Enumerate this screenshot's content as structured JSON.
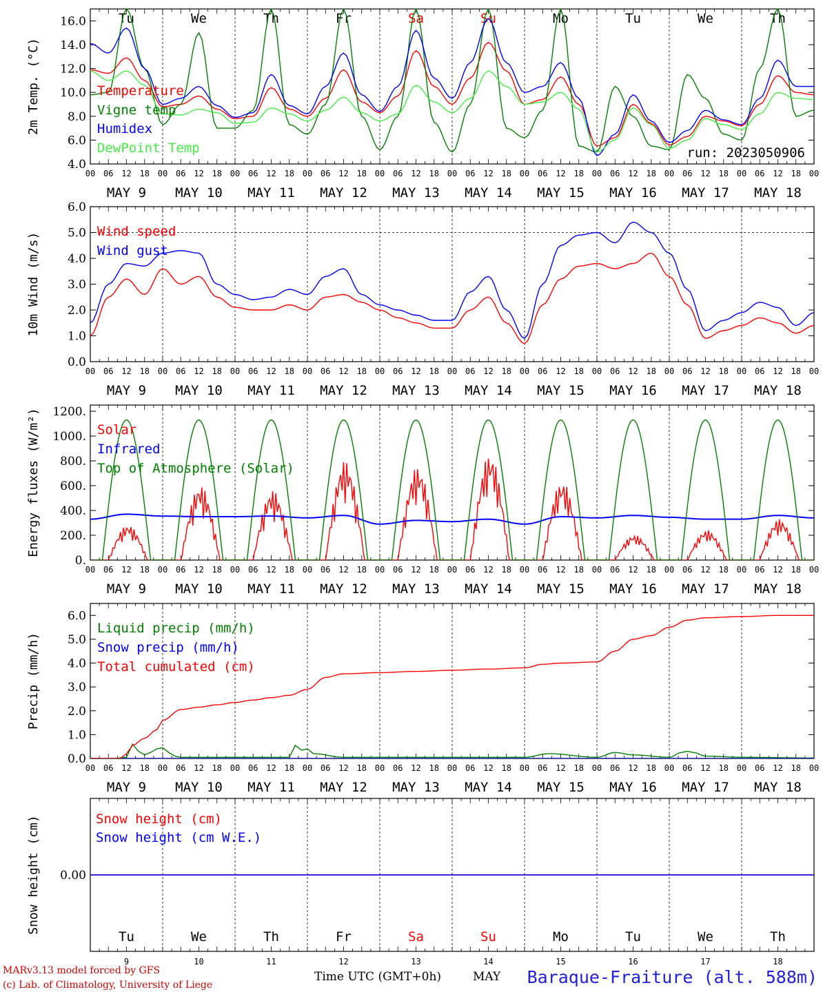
{
  "chart_data": [
    {
      "type": "line",
      "ylabel": "2m Temp. (°C)",
      "ylim": [
        4.0,
        17.0
      ],
      "yticks": [
        4.0,
        6.0,
        8.0,
        10.0,
        12.0,
        14.0,
        16.0
      ],
      "ytick_labels": [
        "4.0",
        "6.0",
        "8.0",
        "10.0",
        "12.0",
        "14.0",
        "16.0"
      ],
      "xlim": [
        0,
        240
      ],
      "annotation": "run: 2023050906",
      "series": [
        {
          "name": "Temperature",
          "color": "#ff0000",
          "x": [
            0,
            6,
            12,
            18,
            24,
            30,
            36,
            42,
            48,
            54,
            60,
            66,
            72,
            78,
            84,
            90,
            96,
            102,
            108,
            114,
            120,
            126,
            132,
            138,
            144,
            150,
            156,
            162,
            168,
            174,
            180,
            186,
            192,
            198,
            204,
            210,
            216,
            222,
            228,
            234,
            240
          ],
          "values": [
            11.9,
            11.6,
            12.9,
            11.0,
            8.8,
            9.0,
            9.7,
            8.6,
            7.8,
            8.0,
            10.4,
            8.6,
            8.0,
            9.5,
            11.9,
            9.2,
            8.3,
            9.7,
            13.5,
            10.5,
            9.0,
            11.2,
            14.2,
            11.8,
            9.0,
            9.4,
            11.3,
            9.0,
            5.5,
            6.2,
            9.0,
            7.4,
            5.6,
            6.3,
            8.0,
            7.6,
            7.2,
            9.0,
            11.4,
            10.0,
            9.8
          ]
        },
        {
          "name": "Vigne temp",
          "color": "#008000",
          "x": [
            0,
            6,
            12,
            18,
            24,
            30,
            36,
            42,
            48,
            54,
            60,
            66,
            72,
            78,
            84,
            90,
            96,
            102,
            108,
            114,
            120,
            126,
            132,
            138,
            144,
            150,
            156,
            162,
            168,
            174,
            180,
            186,
            192,
            198,
            204,
            210,
            216,
            222,
            228,
            234,
            240
          ],
          "values": [
            9.8,
            10.0,
            17.0,
            12.0,
            7.3,
            9.0,
            15.0,
            7.0,
            7.0,
            8.5,
            17.0,
            7.3,
            6.5,
            9.0,
            17.0,
            8.0,
            5.2,
            8.0,
            17.0,
            7.5,
            5.0,
            9.0,
            17.0,
            7.0,
            6.2,
            8.5,
            17.0,
            5.5,
            5.0,
            10.5,
            8.0,
            5.5,
            5.2,
            11.5,
            9.5,
            6.5,
            6.0,
            12.0,
            17.0,
            8.0,
            8.5
          ]
        },
        {
          "name": "Humidex",
          "color": "#0000ff",
          "x": [
            0,
            6,
            12,
            18,
            24,
            30,
            36,
            42,
            48,
            54,
            60,
            66,
            72,
            78,
            84,
            90,
            96,
            102,
            108,
            114,
            120,
            126,
            132,
            138,
            144,
            150,
            156,
            162,
            168,
            174,
            180,
            186,
            192,
            198,
            204,
            210,
            216,
            222,
            228,
            234,
            240
          ],
          "values": [
            14.1,
            13.3,
            15.4,
            12.0,
            9.0,
            9.5,
            10.5,
            8.9,
            7.9,
            8.3,
            11.5,
            8.9,
            8.2,
            10.5,
            13.3,
            9.8,
            8.4,
            10.5,
            15.2,
            11.2,
            9.5,
            12.5,
            16.2,
            12.5,
            10.0,
            10.5,
            12.5,
            9.5,
            4.7,
            6.5,
            9.8,
            7.6,
            5.8,
            6.8,
            8.5,
            7.7,
            7.3,
            9.5,
            12.7,
            10.5,
            10.5
          ]
        },
        {
          "name": "DewPoint Temp",
          "color": "#44ee44",
          "x": [
            0,
            6,
            12,
            18,
            24,
            30,
            36,
            42,
            48,
            54,
            60,
            66,
            72,
            78,
            84,
            90,
            96,
            102,
            108,
            114,
            120,
            126,
            132,
            138,
            144,
            150,
            156,
            162,
            168,
            174,
            180,
            186,
            192,
            198,
            204,
            210,
            216,
            222,
            228,
            234,
            240
          ],
          "values": [
            11.8,
            11.0,
            11.8,
            10.6,
            8.2,
            8.1,
            8.6,
            8.3,
            7.4,
            7.5,
            8.7,
            8.2,
            7.6,
            8.5,
            9.6,
            8.3,
            7.6,
            8.2,
            10.6,
            9.2,
            8.3,
            9.5,
            11.8,
            10.5,
            9.0,
            9.2,
            10.0,
            8.6,
            5.0,
            6.0,
            8.7,
            7.3,
            5.3,
            6.0,
            7.8,
            7.3,
            6.9,
            8.2,
            10.0,
            9.5,
            9.4
          ]
        }
      ]
    },
    {
      "type": "line",
      "ylabel": "10m Wind (m/s)",
      "ylim": [
        0.0,
        6.0
      ],
      "yticks": [
        0,
        1,
        2,
        3,
        4,
        5,
        6
      ],
      "ytick_labels": [
        "0.0",
        "1.0",
        "2.0",
        "3.0",
        "4.0",
        "5.0",
        "6.0"
      ],
      "xlim": [
        0,
        240
      ],
      "reference_line": 5.0,
      "series": [
        {
          "name": "Wind speed",
          "color": "#ff0000",
          "x": [
            0,
            6,
            12,
            18,
            24,
            30,
            36,
            42,
            48,
            54,
            60,
            66,
            72,
            78,
            84,
            90,
            96,
            102,
            108,
            114,
            120,
            126,
            132,
            138,
            144,
            150,
            156,
            162,
            168,
            174,
            180,
            186,
            192,
            198,
            204,
            210,
            216,
            222,
            228,
            234,
            240
          ],
          "values": [
            1.0,
            2.5,
            3.2,
            2.6,
            3.6,
            3.0,
            3.3,
            2.5,
            2.1,
            2.0,
            2.0,
            2.2,
            2.0,
            2.5,
            2.6,
            2.3,
            2.0,
            1.7,
            1.5,
            1.3,
            1.3,
            2.0,
            2.5,
            1.5,
            0.7,
            2.2,
            3.2,
            3.7,
            3.8,
            3.6,
            3.8,
            4.2,
            3.3,
            2.2,
            0.9,
            1.2,
            1.4,
            1.7,
            1.5,
            1.1,
            1.4
          ]
        },
        {
          "name": "Wind gust",
          "color": "#0000ff",
          "x": [
            0,
            6,
            12,
            18,
            24,
            30,
            36,
            42,
            48,
            54,
            60,
            66,
            72,
            78,
            84,
            90,
            96,
            102,
            108,
            114,
            120,
            126,
            132,
            138,
            144,
            150,
            156,
            162,
            168,
            174,
            180,
            186,
            192,
            198,
            204,
            210,
            216,
            222,
            228,
            234,
            240
          ],
          "values": [
            1.5,
            3.0,
            3.8,
            3.7,
            4.2,
            4.3,
            4.2,
            3.0,
            2.6,
            2.4,
            2.5,
            2.8,
            2.6,
            3.3,
            3.6,
            2.6,
            2.2,
            2.0,
            1.8,
            1.6,
            1.6,
            2.7,
            3.3,
            2.0,
            0.9,
            3.0,
            4.5,
            4.9,
            5.0,
            4.6,
            5.4,
            5.0,
            4.2,
            2.8,
            1.2,
            1.6,
            1.9,
            2.3,
            2.1,
            1.4,
            1.9
          ]
        }
      ]
    },
    {
      "type": "line",
      "ylabel": "Energy fluxes (W/m²)",
      "ylim": [
        0,
        1250
      ],
      "yticks": [
        0,
        200,
        400,
        600,
        800,
        1000,
        1200
      ],
      "ytick_labels": [
        "0.",
        "200.",
        "400.",
        "600.",
        "800.",
        "1000.",
        "1200."
      ],
      "xlim": [
        0,
        240
      ],
      "series": [
        {
          "name": "Solar",
          "color": "#ff0000",
          "daily_peaks": [
            280,
            600,
            560,
            800,
            750,
            850,
            630,
            200,
            240,
            330
          ]
        },
        {
          "name": "Infrared",
          "color": "#0000ff",
          "x": [
            0,
            12,
            24,
            36,
            48,
            60,
            72,
            84,
            96,
            108,
            120,
            132,
            144,
            156,
            168,
            180,
            192,
            204,
            216,
            228,
            240
          ],
          "values": [
            330,
            370,
            355,
            350,
            350,
            355,
            340,
            360,
            290,
            320,
            310,
            330,
            290,
            350,
            340,
            360,
            345,
            330,
            330,
            360,
            340
          ]
        },
        {
          "name": "Top of Atmosphere (Solar)",
          "color": "#008000",
          "daily_peak": 1130,
          "sunrise_hour": 4,
          "sunset_hour": 20
        }
      ]
    },
    {
      "type": "line",
      "ylabel": "Precip (mm/h)",
      "ylim": [
        0.0,
        6.5
      ],
      "yticks": [
        0,
        1,
        2,
        3,
        4,
        5,
        6
      ],
      "ytick_labels": [
        "0.0",
        "1.0",
        "2.0",
        "3.0",
        "4.0",
        "5.0",
        "6.0"
      ],
      "xlim": [
        0,
        240
      ],
      "series": [
        {
          "name": "Liquid precip (mm/h)",
          "color": "#008000",
          "x": [
            0,
            8,
            12,
            14,
            16,
            18,
            20,
            22,
            24,
            26,
            28,
            30,
            36,
            48,
            66,
            68,
            70,
            72,
            74,
            84,
            108,
            144,
            152,
            168,
            174,
            180,
            192,
            196,
            198,
            200,
            204,
            216,
            240
          ],
          "values": [
            0,
            0,
            0.05,
            0.6,
            0.3,
            0.15,
            0.25,
            0.4,
            0.45,
            0.25,
            0.1,
            0.05,
            0.05,
            0.05,
            0.05,
            0.55,
            0.35,
            0.4,
            0.2,
            0.05,
            0.05,
            0.05,
            0.2,
            0.05,
            0.25,
            0.15,
            0.05,
            0.25,
            0.3,
            0.25,
            0.1,
            0.05,
            0.02
          ]
        },
        {
          "name": "Snow precip (mm/h)",
          "color": "#0000ff",
          "x": [
            0,
            240
          ],
          "values": [
            0,
            0
          ]
        },
        {
          "name": "Total cumulated (cm)",
          "color": "#ff0000",
          "x": [
            0,
            10,
            12,
            14,
            18,
            22,
            24,
            30,
            36,
            42,
            48,
            54,
            60,
            66,
            72,
            78,
            84,
            96,
            108,
            120,
            132,
            144,
            150,
            156,
            168,
            174,
            180,
            186,
            192,
            198,
            204,
            216,
            228,
            240
          ],
          "values": [
            0,
            0,
            0.2,
            0.55,
            0.85,
            1.2,
            1.6,
            2.05,
            2.15,
            2.25,
            2.35,
            2.45,
            2.55,
            2.65,
            2.9,
            3.4,
            3.55,
            3.6,
            3.65,
            3.7,
            3.75,
            3.8,
            3.95,
            4.0,
            4.05,
            4.5,
            5.0,
            5.15,
            5.5,
            5.8,
            5.9,
            5.95,
            6.0,
            6.0
          ]
        }
      ]
    },
    {
      "type": "line",
      "ylabel": "Snow height (cm)",
      "ylim": [
        -1,
        1
      ],
      "yticks": [
        0
      ],
      "ytick_labels": [
        "0.00"
      ],
      "xlim": [
        0,
        240
      ],
      "series": [
        {
          "name": "Snow height (cm)",
          "color": "#ff0000",
          "x": [
            0,
            240
          ],
          "values": [
            0,
            0
          ]
        },
        {
          "name": "Snow height (cm W.E.)",
          "color": "#0000ff",
          "x": [
            0,
            240
          ],
          "values": [
            0,
            0
          ]
        }
      ]
    }
  ],
  "x_axis": {
    "hour_labels": [
      "00",
      "06",
      "12",
      "18"
    ],
    "final_hour_label": "00",
    "dates": [
      "MAY  9",
      "MAY 10",
      "MAY 11",
      "MAY 12",
      "MAY 13",
      "MAY 14",
      "MAY 15",
      "MAY 16",
      "MAY 17",
      "MAY 18"
    ],
    "days": [
      {
        "label": "Tu",
        "color": "#000000"
      },
      {
        "label": "We",
        "color": "#000000"
      },
      {
        "label": "Th",
        "color": "#000000"
      },
      {
        "label": "Fr",
        "color": "#000000"
      },
      {
        "label": "Sa",
        "color": "#ff0000"
      },
      {
        "label": "Su",
        "color": "#ff0000"
      },
      {
        "label": "Mo",
        "color": "#000000"
      },
      {
        "label": "Tu",
        "color": "#000000"
      },
      {
        "label": "We",
        "color": "#000000"
      },
      {
        "label": "Th",
        "color": "#000000"
      }
    ],
    "day_numbers": [
      "9",
      "10",
      "11",
      "12",
      "13",
      "14",
      "15",
      "16",
      "17",
      "18"
    ]
  },
  "footer": {
    "model": "MARv3.13 model forced by GFS",
    "copyright": "(c) Lab. of Climatology, University of Liege",
    "time_label": "Time UTC (GMT+0h)",
    "month": "MAY",
    "station": "Baraque-Fraiture (alt. 588m)"
  }
}
